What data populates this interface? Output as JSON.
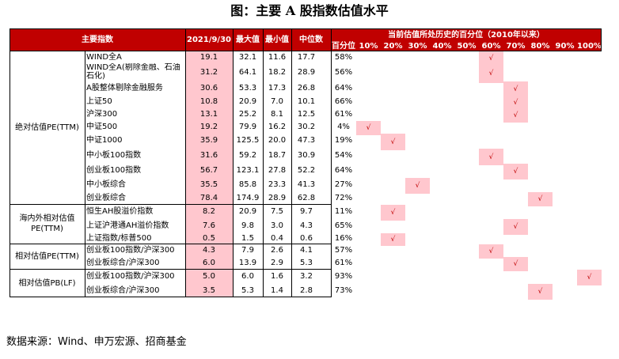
{
  "title": "图：主要 A 股指数估值水平",
  "headers": {
    "index": "主要指数",
    "date": "2021/9/30",
    "max": "最大值",
    "min": "最小值",
    "median": "中位数",
    "span": "当前估值所处历史的百分位（2010年以来）",
    "pct": "百分位",
    "buckets": [
      "10%",
      "20%",
      "30%",
      "40%",
      "50%",
      "60%",
      "70%",
      "80%",
      "90%",
      "100%"
    ]
  },
  "groups": [
    {
      "label": "绝对估值PE(TTM)",
      "rows": 11
    },
    {
      "label": "海内外相对估值PE(TTM)",
      "rows": 3
    },
    {
      "label": "相对估值PE(TTM)",
      "rows": 2
    },
    {
      "label": "相对估值PB(LF)",
      "rows": 2
    }
  ],
  "rows": [
    {
      "name": "WIND全A",
      "current": "19.1",
      "max": "32.1",
      "min": "11.6",
      "median": "17.7",
      "pct": "58%",
      "bucket": 6
    },
    {
      "name": "WIND全A(剔除金融、石油石化)",
      "current": "31.2",
      "max": "64.1",
      "min": "18.2",
      "median": "28.9",
      "pct": "56%",
      "bucket": 6
    },
    {
      "name": "A股整体剔除金融服务",
      "current": "30.6",
      "max": "53.3",
      "min": "17.3",
      "median": "26.8",
      "pct": "64%",
      "bucket": 7
    },
    {
      "name": "上证50",
      "current": "10.8",
      "max": "20.9",
      "min": "7.0",
      "median": "10.1",
      "pct": "66%",
      "bucket": 7
    },
    {
      "name": "沪深300",
      "current": "13.1",
      "max": "25.2",
      "min": "8.1",
      "median": "12.5",
      "pct": "61%",
      "bucket": 7
    },
    {
      "name": "中证500",
      "current": "19.2",
      "max": "79.9",
      "min": "16.2",
      "median": "30.2",
      "pct": "4%",
      "bucket": 1
    },
    {
      "name": "中证1000",
      "current": "35.9",
      "max": "125.5",
      "min": "20.0",
      "median": "47.3",
      "pct": "19%",
      "bucket": 2
    },
    {
      "name": "中小板100指数",
      "current": "31.6",
      "max": "59.2",
      "min": "18.7",
      "median": "30.9",
      "pct": "54%",
      "bucket": 6
    },
    {
      "name": "创业板100指数",
      "current": "56.7",
      "max": "123.1",
      "min": "27.8",
      "median": "52.2",
      "pct": "64%",
      "bucket": 7
    },
    {
      "name": "中小板综合",
      "current": "35.5",
      "max": "85.8",
      "min": "23.3",
      "median": "41.3",
      "pct": "27%",
      "bucket": 3
    },
    {
      "name": "创业板综合",
      "current": "78.4",
      "max": "174.9",
      "min": "28.9",
      "median": "62.8",
      "pct": "72%",
      "bucket": 8
    },
    {
      "name": "恒生AH股溢价指数",
      "current": "8.2",
      "max": "20.9",
      "min": "7.5",
      "median": "9.7",
      "pct": "11%",
      "bucket": 2
    },
    {
      "name": "上证沪港通AH溢价指数",
      "current": "7.6",
      "max": "9.8",
      "min": "3.0",
      "median": "4.3",
      "pct": "65%",
      "bucket": 7
    },
    {
      "name": "上证指数/标普500",
      "current": "0.5",
      "max": "1.5",
      "min": "0.4",
      "median": "0.6",
      "pct": "16%",
      "bucket": 2
    },
    {
      "name": "创业板100指数/沪深300",
      "current": "4.3",
      "max": "7.9",
      "min": "2.6",
      "median": "4.1",
      "pct": "57%",
      "bucket": 6
    },
    {
      "name": "创业板综合/沪深300",
      "current": "6.0",
      "max": "13.9",
      "min": "2.9",
      "median": "5.3",
      "pct": "61%",
      "bucket": 7
    },
    {
      "name": "创业板100指数/沪深300",
      "current": "5.0",
      "max": "6.0",
      "min": "1.6",
      "median": "3.2",
      "pct": "93%",
      "bucket": 10
    },
    {
      "name": "创业板综合/沪深300",
      "current": "3.5",
      "max": "5.3",
      "min": "1.4",
      "median": "2.8",
      "pct": "73%",
      "bucket": 8
    }
  ],
  "check_mark": "√",
  "source": "数据来源：Wind、申万宏源、招商基金",
  "colors": {
    "header": "#c00000",
    "highlight": "#ffc7ce"
  }
}
